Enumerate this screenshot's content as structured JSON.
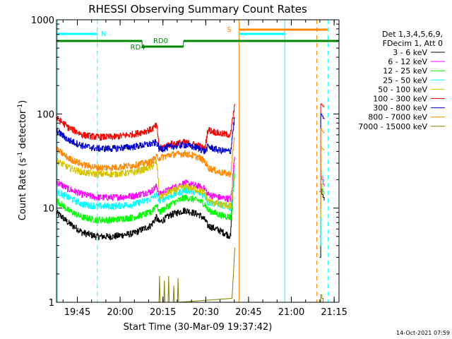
{
  "chart_data": {
    "type": "line",
    "title": "RHESSI Observing Summary Count Rates",
    "xlabel": "Start Time (30-Mar-09 19:37:42)",
    "ylabel_prefix": "Count Rate (s",
    "ylabel_sup1": "-1",
    "ylabel_mid": " detector",
    "ylabel_sup2": "-1",
    "ylabel_suffix": ")",
    "y_scale": "log",
    "ylim": [
      1,
      1000
    ],
    "xlim_minutes": [
      0,
      99
    ],
    "x_ticks": [
      {
        "label": "19:45",
        "minute": 7.3
      },
      {
        "label": "20:00",
        "minute": 22.3
      },
      {
        "label": "20:15",
        "minute": 37.3
      },
      {
        "label": "20:30",
        "minute": 52.3
      },
      {
        "label": "20:45",
        "minute": 67.3
      },
      {
        "label": "21:00",
        "minute": 82.3
      },
      {
        "label": "21:15",
        "minute": 97.3
      }
    ],
    "y_ticks": [
      {
        "label": "1",
        "value": 1
      },
      {
        "label": "10",
        "value": 10
      },
      {
        "label": "100",
        "value": 100
      },
      {
        "label": "1000",
        "value": 1000
      }
    ],
    "legend_header": [
      "Det 1,3,4,5,6,9,",
      "FDecim 1, Att 0"
    ],
    "legend_position": "right",
    "timestamp": "14-Oct-2021 07:59",
    "series": [
      {
        "name": "3 - 6 keV",
        "color": "#000000",
        "x": [
          0,
          4,
          9,
          14,
          20,
          27,
          33,
          35,
          36,
          40,
          45,
          50,
          52,
          53,
          57,
          61,
          61.5,
          62.5
        ],
        "y": [
          9,
          7,
          5.5,
          5,
          5,
          5.4,
          6.5,
          8,
          7,
          8.5,
          9.5,
          8.5,
          7.5,
          6.5,
          5.8,
          5,
          11,
          30
        ]
      },
      {
        "name": "6 - 12 keV",
        "color": "#ff00ff",
        "x": [
          0,
          4,
          9,
          14,
          20,
          27,
          33,
          35,
          36,
          40,
          45,
          50,
          52,
          53,
          57,
          61,
          61.5,
          62.5
        ],
        "y": [
          19,
          16,
          14,
          13,
          13,
          13.5,
          15,
          17,
          14,
          16,
          18.5,
          17,
          16,
          14,
          13,
          12.5,
          16,
          40
        ]
      },
      {
        "name": "12 - 25 keV",
        "color": "#00ff00",
        "x": [
          0,
          4,
          9,
          14,
          20,
          27,
          33,
          35,
          36,
          40,
          45,
          50,
          52,
          53,
          57,
          61,
          61.5,
          62.5
        ],
        "y": [
          12,
          9.5,
          8,
          7.5,
          7.5,
          8,
          9,
          11,
          9,
          11,
          13,
          12,
          11,
          9.5,
          8.5,
          8,
          10,
          25
        ]
      },
      {
        "name": "25 - 50 keV",
        "color": "#00ffff",
        "x": [
          0,
          4,
          9,
          14,
          20,
          27,
          33,
          35,
          36,
          40,
          45,
          50,
          52,
          53,
          57,
          61,
          61.5,
          62.5
        ],
        "y": [
          15,
          13,
          11,
          10.5,
          10.5,
          11,
          12.5,
          14,
          12,
          13.5,
          15.5,
          14.5,
          13.5,
          11.5,
          11,
          10,
          13,
          30
        ]
      },
      {
        "name": "50 - 100 keV",
        "color": "#d4c400",
        "x": [
          0,
          4,
          9,
          14,
          20,
          27,
          33,
          35,
          36,
          40,
          45,
          50,
          52,
          53,
          57,
          61,
          61.5,
          62.5
        ],
        "y": [
          32,
          27,
          24,
          23,
          23,
          24,
          27,
          31,
          13,
          15,
          17,
          15.5,
          14.5,
          12,
          11,
          10.5,
          14,
          30
        ]
      },
      {
        "name": "100 - 300 keV",
        "color": "#ff0000",
        "x": [
          0,
          4,
          9,
          14,
          20,
          27,
          33,
          35,
          36,
          40,
          45,
          50,
          52,
          53,
          57,
          61,
          61.5,
          62.5
        ],
        "y": [
          90,
          72,
          60,
          57,
          57,
          61,
          68,
          75,
          43,
          48,
          50,
          46,
          42,
          68,
          62,
          60,
          80,
          125
        ]
      },
      {
        "name": "300 - 800 keV",
        "color": "#0000cc",
        "x": [
          0,
          4,
          9,
          14,
          20,
          27,
          33,
          35,
          36,
          40,
          45,
          50,
          52,
          53,
          57,
          61,
          61.5,
          62.5
        ],
        "y": [
          66,
          53,
          46,
          43,
          43,
          45,
          48,
          50,
          42,
          45,
          47,
          43,
          40,
          45,
          41,
          40,
          55,
          95
        ]
      },
      {
        "name": "800 - 7000 keV",
        "color": "#ff8800",
        "x": [
          0,
          4,
          9,
          14,
          20,
          27,
          33,
          35,
          36,
          40,
          45,
          50,
          52,
          53,
          57,
          61,
          61.5,
          62.5
        ],
        "y": [
          42,
          34,
          29,
          27,
          27,
          28.5,
          31,
          35,
          34,
          37,
          38,
          34.5,
          31,
          27,
          24,
          23,
          32,
          60
        ]
      },
      {
        "name": "7000 - 15000 keV",
        "color": "#808000",
        "x": [
          35.9,
          36.1,
          36.3,
          37.6,
          37.8,
          38,
          39.1,
          39.3,
          39.5,
          40.9,
          41.1,
          41.3,
          42.4,
          42.6,
          42.8,
          61.5,
          62,
          62.5
        ],
        "y": [
          1,
          1.9,
          1,
          1,
          1.7,
          1,
          1,
          1.9,
          1,
          1,
          1.5,
          1,
          1,
          1.8,
          1,
          1.1,
          2,
          3.8
        ]
      }
    ],
    "late_segment": {
      "x": [
        92.2,
        92.6,
        93,
        93.4,
        93.8
      ],
      "series": {
        "3 - 6 keV": [
          3,
          16,
          14,
          13,
          12
        ],
        "6 - 12 keV": [
          5,
          22,
          20,
          18,
          17
        ],
        "12 - 25 keV": [
          4,
          18,
          16,
          15,
          14
        ],
        "25 - 50 keV": [
          4,
          25,
          22,
          20,
          19
        ],
        "50 - 100 keV": [
          8,
          45,
          43,
          42,
          41
        ],
        "100 - 300 keV": [
          15,
          128,
          124,
          120,
          118
        ],
        "300 - 800 keV": [
          15,
          100,
          95,
          90,
          88
        ],
        "800 - 7000 keV": [
          10,
          70,
          66,
          64,
          62
        ],
        "7000 - 15000 keV": [
          1,
          1.2,
          1.1,
          1,
          1
        ]
      }
    },
    "annotations": {
      "n_label": "N",
      "s_label": "S",
      "rd0_label": "RD0",
      "rd4_label": "RD4"
    },
    "flags": {
      "night": [
        [
          0,
          14.3
        ],
        [
          64,
          80
        ]
      ],
      "saa": [
        [
          64,
          95
        ]
      ],
      "rd0": [
        [
          0,
          30
        ],
        [
          44.5,
          99
        ]
      ],
      "rd4": [
        [
          30,
          44.5
        ]
      ]
    },
    "vertical_markers": [
      {
        "minute": 0.3,
        "color": "#00ffff",
        "style": "solid"
      },
      {
        "minute": 14.3,
        "color": "#00ffff",
        "style": "dashed"
      },
      {
        "minute": 64.0,
        "color": "#ff8800",
        "style": "solid"
      },
      {
        "minute": 80.0,
        "color": "#00ffff",
        "style": "solid"
      },
      {
        "minute": 91.2,
        "color": "#ff8800",
        "style": "dashed"
      },
      {
        "minute": 95.2,
        "color": "#00ffff",
        "style": "dashed"
      }
    ]
  }
}
